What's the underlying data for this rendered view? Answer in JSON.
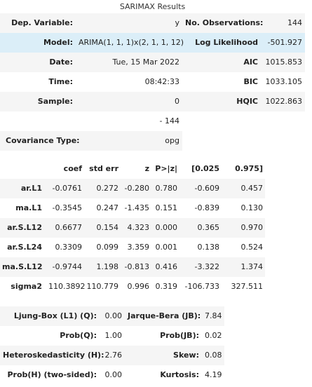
{
  "caption": "SARIMAX Results",
  "summary": {
    "rows": [
      {
        "l1": "Dep. Variable:",
        "v1": "y",
        "l2": "No. Observations:",
        "v2": "144"
      },
      {
        "l1": "Model:",
        "v1": "ARIMA(1, 1, 1)x(2, 1, 1, 12)",
        "l2": "Log Likelihood",
        "v2": "-501.927"
      },
      {
        "l1": "Date:",
        "v1": "Tue, 15 Mar 2022",
        "l2": "AIC",
        "v2": "1015.853"
      },
      {
        "l1": "Time:",
        "v1": "08:42:33",
        "l2": "BIC",
        "v2": "1033.105"
      },
      {
        "l1": "Sample:",
        "v1": "0",
        "l2": "HQIC",
        "v2": "1022.863"
      },
      {
        "l1": "",
        "v1": "- 144",
        "l2": "",
        "v2": ""
      }
    ],
    "cov_label": "Covariance Type:",
    "cov_value": "opg"
  },
  "coef": {
    "headers": [
      "",
      "coef",
      "std err",
      "z",
      "P>|z|",
      "[0.025",
      "0.975]"
    ],
    "rows": [
      [
        "ar.L1",
        "-0.0761",
        "0.272",
        "-0.280",
        "0.780",
        "-0.609",
        "0.457"
      ],
      [
        "ma.L1",
        "-0.3545",
        "0.247",
        "-1.435",
        "0.151",
        "-0.839",
        "0.130"
      ],
      [
        "ar.S.L12",
        "0.6677",
        "0.154",
        "4.323",
        "0.000",
        "0.365",
        "0.970"
      ],
      [
        "ar.S.L24",
        "0.3309",
        "0.099",
        "3.359",
        "0.001",
        "0.138",
        "0.524"
      ],
      [
        "ma.S.L12",
        "-0.9744",
        "1.198",
        "-0.813",
        "0.416",
        "-3.322",
        "1.374"
      ],
      [
        "sigma2",
        "110.3892",
        "110.779",
        "0.996",
        "0.319",
        "-106.733",
        "327.511"
      ]
    ]
  },
  "diagnostics": {
    "rows": [
      [
        "Ljung-Box (L1) (Q):",
        "0.00",
        "Jarque-Bera (JB):",
        "7.84"
      ],
      [
        "Prob(Q):",
        "1.00",
        "Prob(JB):",
        "0.02"
      ],
      [
        "Heteroskedasticity (H):",
        "2.76",
        "Skew:",
        "0.08"
      ],
      [
        "Prob(H) (two-sided):",
        "0.00",
        "Kurtosis:",
        "4.19"
      ]
    ]
  },
  "colors": {
    "zebra": "#f5f5f5",
    "highlight": "#dbeef8"
  }
}
